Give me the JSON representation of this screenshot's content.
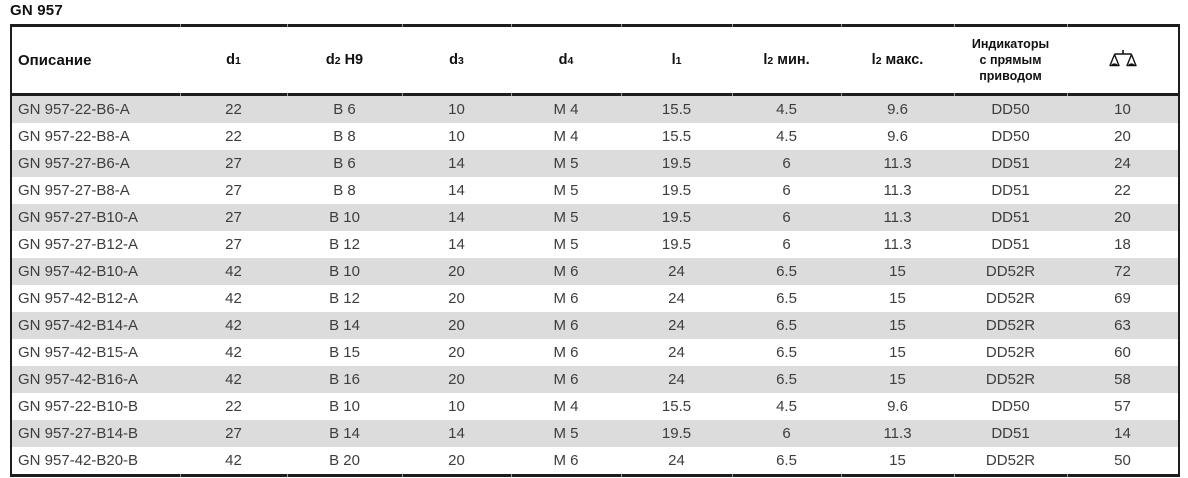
{
  "title": "GN 957",
  "table": {
    "columns": [
      {
        "label": "Описание"
      },
      {
        "pre": "d",
        "sub": "1",
        "post": ""
      },
      {
        "pre": "d",
        "sub": "2",
        "post": "H9"
      },
      {
        "pre": "d",
        "sub": "3",
        "post": ""
      },
      {
        "pre": "d",
        "sub": "4",
        "post": ""
      },
      {
        "pre": "l",
        "sub": "1",
        "post": ""
      },
      {
        "pre": "l",
        "sub": "2",
        "post": "мин."
      },
      {
        "pre": "l",
        "sub": "2",
        "post": "макс."
      },
      {
        "label": "Индикаторы\nс прямым\nприводом"
      },
      {
        "icon": "weight-scale-icon"
      }
    ],
    "rows": [
      [
        "GN 957-22-B6-A",
        "22",
        "B 6",
        "10",
        "M 4",
        "15.5",
        "4.5",
        "9.6",
        "DD50",
        "10"
      ],
      [
        "GN 957-22-B8-A",
        "22",
        "B 8",
        "10",
        "M 4",
        "15.5",
        "4.5",
        "9.6",
        "DD50",
        "20"
      ],
      [
        "GN 957-27-B6-A",
        "27",
        "B 6",
        "14",
        "M 5",
        "19.5",
        "6",
        "11.3",
        "DD51",
        "24"
      ],
      [
        "GN 957-27-B8-A",
        "27",
        "B 8",
        "14",
        "M 5",
        "19.5",
        "6",
        "11.3",
        "DD51",
        "22"
      ],
      [
        "GN 957-27-B10-A",
        "27",
        "B 10",
        "14",
        "M 5",
        "19.5",
        "6",
        "11.3",
        "DD51",
        "20"
      ],
      [
        "GN 957-27-B12-A",
        "27",
        "B 12",
        "14",
        "M 5",
        "19.5",
        "6",
        "11.3",
        "DD51",
        "18"
      ],
      [
        "GN 957-42-B10-A",
        "42",
        "B 10",
        "20",
        "M 6",
        "24",
        "6.5",
        "15",
        "DD52R",
        "72"
      ],
      [
        "GN 957-42-B12-A",
        "42",
        "B 12",
        "20",
        "M 6",
        "24",
        "6.5",
        "15",
        "DD52R",
        "69"
      ],
      [
        "GN 957-42-B14-A",
        "42",
        "B 14",
        "20",
        "M 6",
        "24",
        "6.5",
        "15",
        "DD52R",
        "63"
      ],
      [
        "GN 957-42-B15-A",
        "42",
        "B 15",
        "20",
        "M 6",
        "24",
        "6.5",
        "15",
        "DD52R",
        "60"
      ],
      [
        "GN 957-42-B16-A",
        "42",
        "B 16",
        "20",
        "M 6",
        "24",
        "6.5",
        "15",
        "DD52R",
        "58"
      ],
      [
        "GN 957-22-B10-B",
        "22",
        "B 10",
        "10",
        "M 4",
        "15.5",
        "4.5",
        "9.6",
        "DD50",
        "57"
      ],
      [
        "GN 957-27-B14-B",
        "27",
        "B 14",
        "14",
        "M 5",
        "19.5",
        "6",
        "11.3",
        "DD51",
        "14"
      ],
      [
        "GN 957-42-B20-B",
        "42",
        "B 20",
        "20",
        "M 6",
        "24",
        "6.5",
        "15",
        "DD52R",
        "50"
      ]
    ]
  },
  "colors": {
    "border": "#1d1d1b",
    "row_alt": "#dcdcdc",
    "row_base": "#ffffff",
    "data_text": "#3d3d3d",
    "header_text": "#111111"
  }
}
